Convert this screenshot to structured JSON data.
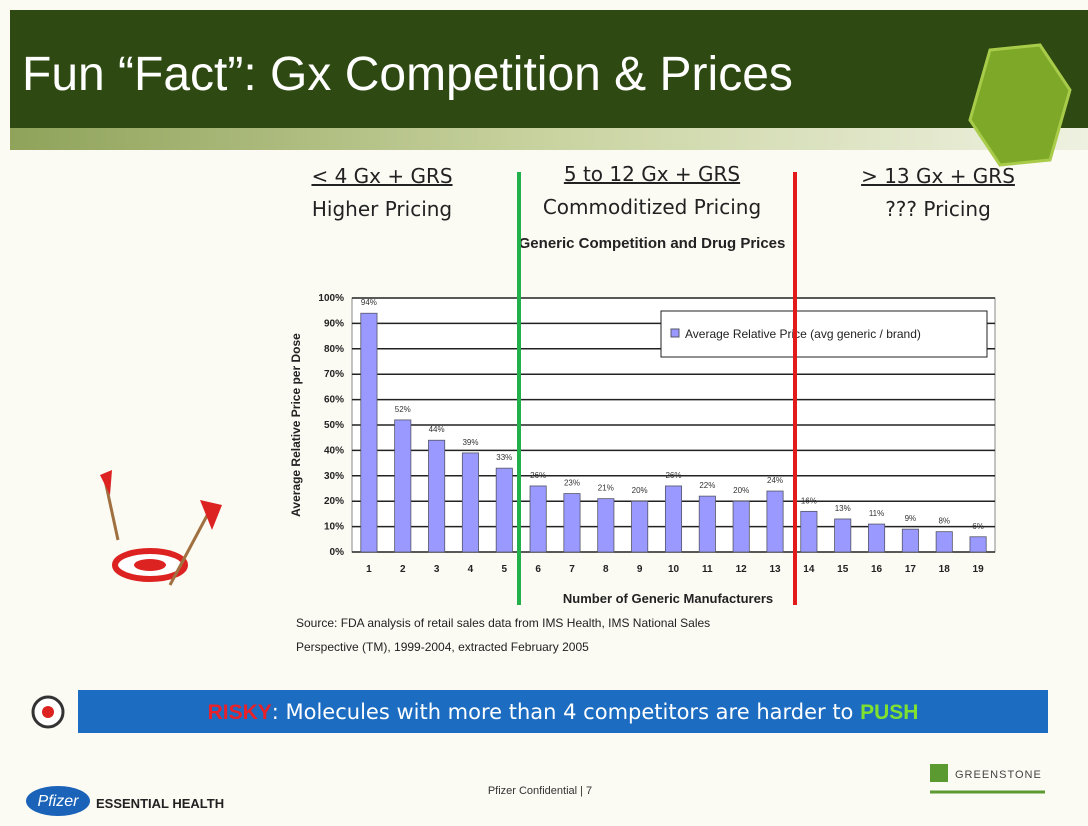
{
  "header": {
    "title": "Fun “Fact”: Gx Competition & Prices"
  },
  "segments": [
    {
      "heading": "< 4 Gx + GRS",
      "label": "Higher Pricing"
    },
    {
      "heading": "5 to 12 Gx + GRS",
      "label": "Commoditized Pricing"
    },
    {
      "heading": "> 13 Gx + GRS",
      "label": "??? Pricing"
    }
  ],
  "chart_data": {
    "type": "bar",
    "title": "Generic Competition and Drug Prices",
    "y_label": "Average Relative Price per Dose",
    "x_label": "Number of Generic Manufacturers",
    "categories": [
      "1",
      "2",
      "3",
      "4",
      "5",
      "6",
      "7",
      "8",
      "9",
      "10",
      "11",
      "12",
      "13",
      "14",
      "15",
      "16",
      "17",
      "18",
      "19"
    ],
    "series": [
      {
        "name": "Average Relative Price (avg generic / brand)",
        "color": "#9999ff",
        "values": [
          94,
          52,
          44,
          39,
          33,
          26,
          23,
          21,
          20,
          26,
          22,
          20,
          24,
          16,
          13,
          11,
          9,
          8,
          6
        ],
        "value_labels": [
          "94%",
          "52%",
          "44%",
          "39%",
          "33%",
          "26%",
          "23%",
          "21%",
          "20%",
          "26%",
          "22%",
          "20%",
          "24%",
          "16%",
          "13%",
          "11%",
          "9%",
          "8%",
          "6%"
        ]
      }
    ],
    "ylim": [
      0,
      100
    ],
    "yticks": [
      {
        "value": 0,
        "label": "0%"
      },
      {
        "value": 10,
        "label": "10%"
      },
      {
        "value": 20,
        "label": "20%"
      },
      {
        "value": 30,
        "label": "30%"
      },
      {
        "value": 40,
        "label": "40%"
      },
      {
        "value": 50,
        "label": "50%"
      },
      {
        "value": 60,
        "label": "60%"
      },
      {
        "value": 70,
        "label": "70%"
      },
      {
        "value": 80,
        "label": "80%"
      },
      {
        "value": 90,
        "label": "90%"
      },
      {
        "value": 100,
        "label": "100%"
      }
    ],
    "grid": true,
    "legend": "upper right"
  },
  "source": [
    "Source:  FDA analysis of retail sales data from IMS Health, IMS National Sales",
    "Perspective (TM), 1999-2004, extracted February 2005"
  ],
  "banner": {
    "risky": "RISKY",
    "text": ": Molecules with more than 4 competitors are harder to ",
    "push": "PUSH"
  },
  "footer": {
    "confidential": "Pfizer Confidential | 7",
    "pfizer": "Pfizer",
    "brand": "ESSENTIAL HEALTH",
    "partner": "GREENSTONE"
  }
}
